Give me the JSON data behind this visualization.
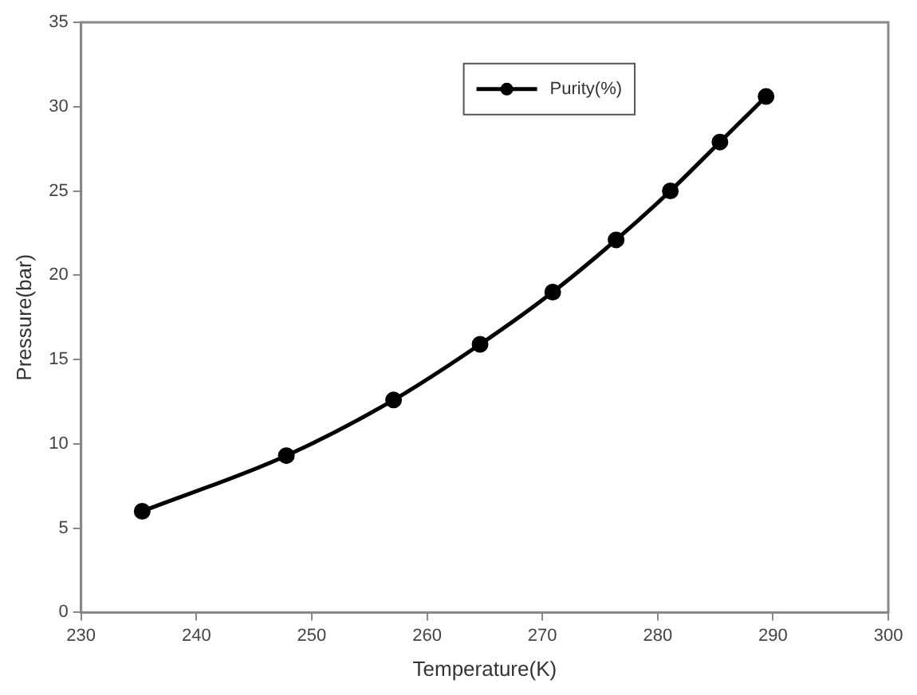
{
  "chart_data": {
    "type": "line",
    "xlabel": "Temperature(K)",
    "ylabel": "Pressure(bar)",
    "x": [
      235.3,
      247.8,
      257.1,
      264.6,
      270.9,
      276.4,
      281.1,
      285.4,
      289.4
    ],
    "series": [
      {
        "name": "Purity(%)",
        "color": "#000000",
        "values": [
          6.0,
          9.3,
          12.6,
          15.9,
          19.0,
          22.1,
          25.0,
          27.9,
          30.6
        ]
      }
    ],
    "xlim": [
      230,
      300
    ],
    "xticks": [
      230,
      240,
      250,
      260,
      270,
      280,
      290,
      300
    ],
    "ylim": [
      0,
      35
    ],
    "yticks": [
      0,
      5,
      10,
      15,
      20,
      25,
      30,
      35
    ],
    "grid": false,
    "legend": "top",
    "marker": "circle",
    "line_style": "solid"
  }
}
